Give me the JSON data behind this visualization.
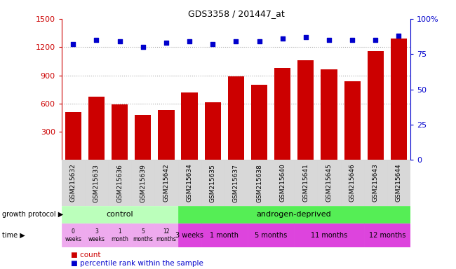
{
  "title": "GDS3358 / 201447_at",
  "samples": [
    "GSM215632",
    "GSM215633",
    "GSM215636",
    "GSM215639",
    "GSM215642",
    "GSM215634",
    "GSM215635",
    "GSM215637",
    "GSM215638",
    "GSM215640",
    "GSM215641",
    "GSM215645",
    "GSM215646",
    "GSM215643",
    "GSM215644"
  ],
  "counts": [
    510,
    670,
    590,
    480,
    530,
    720,
    610,
    890,
    800,
    980,
    1060,
    960,
    840,
    1160,
    1290
  ],
  "percentiles": [
    82,
    85,
    84,
    80,
    83,
    84,
    82,
    84,
    84,
    86,
    87,
    85,
    85,
    85,
    88
  ],
  "ylim": [
    0,
    1500
  ],
  "yticks_left": [
    300,
    600,
    900,
    1200,
    1500
  ],
  "yticks_right": [
    0,
    25,
    50,
    75,
    100
  ],
  "bar_color": "#cc0000",
  "dot_color": "#0000cc",
  "dotted_line_color": "#aaaaaa",
  "dotted_lines": [
    600,
    900,
    1200
  ],
  "control_light_color": "#bbffbb",
  "control_dark_color": "#55dd55",
  "androgen_color": "#44cc44",
  "time_ctrl_color": "#ee99ee",
  "time_and_color": "#dd44dd",
  "sample_bg_color": "#cccccc",
  "sample_bg_color2": "#dddddd",
  "growth_protocol_label": "growth protocol",
  "time_label": "time",
  "control_label": "control",
  "androgen_label": "androgen-deprived",
  "legend_count_label": "count",
  "legend_pct_label": "percentile rank within the sample",
  "n_control": 5,
  "n_androgen": 10,
  "and_groups": [
    [
      "3 weeks",
      1
    ],
    [
      "1 month",
      2
    ],
    [
      "5 months",
      2
    ],
    [
      "11 months",
      3
    ],
    [
      "12 months",
      2
    ]
  ],
  "ctrl_time_labels": [
    "0\nweeks",
    "3\nweeks",
    "1\nmonth",
    "5\nmonths",
    "12\nmonths"
  ]
}
